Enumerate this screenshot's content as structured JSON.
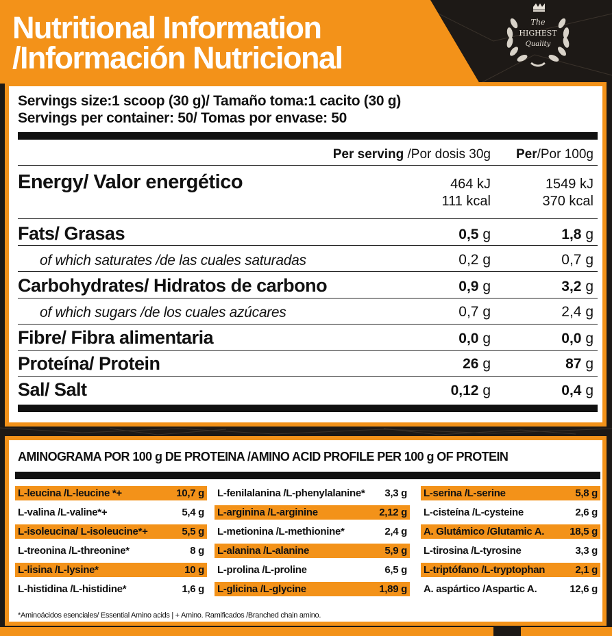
{
  "header": {
    "title_en": "Nutritional Information",
    "title_es": "/Información Nutricional",
    "badge": {
      "line1": "The",
      "line2": "HIGHEST",
      "line3": "Quality",
      "icon": "laurel-crown-icon"
    }
  },
  "servings": {
    "size": "Servings size:1 scoop (30 g)/ Tamaño toma:1 cacito (30 g)",
    "per_container": "Servings per container: 50/ Tomas por envase: 50"
  },
  "columns": {
    "per_serving_bold": "Per serving",
    "per_serving_rest": " /Por dosis 30g",
    "per_100_bold": "Per",
    "per_100_rest": "/Por 100g"
  },
  "energy": {
    "label": "Energy/ Valor energético",
    "serving_kj": "464 kJ",
    "serving_kcal": "111 kcal",
    "per100_kj": "1549 kJ",
    "per100_kcal": "370 kcal"
  },
  "nutrients": [
    {
      "label": "Fats/ Grasas",
      "serving_num": "0,5",
      "serving_unit": " g",
      "per100_num": "1,8",
      "per100_unit": " g"
    },
    {
      "label": "of which saturates /de las cuales saturadas",
      "serving_num": "0,2",
      "serving_unit": " g",
      "per100_num": "0,7",
      "per100_unit": " g"
    },
    {
      "label": "Carbohydrates/ Hidratos de carbono",
      "serving_num": "0,9",
      "serving_unit": " g",
      "per100_num": "3,2",
      "per100_unit": " g"
    },
    {
      "label": "of which sugars /de los cuales azúcares",
      "serving_num": "0,7",
      "serving_unit": " g",
      "per100_num": "2,4",
      "per100_unit": " g"
    },
    {
      "label": "Fibre/ Fibra alimentaria",
      "serving_num": "0,0",
      "serving_unit": " g",
      "per100_num": "0,0",
      "per100_unit": " g"
    },
    {
      "label": "Proteína/ Protein",
      "serving_num": "26",
      "serving_unit": " g",
      "per100_num": "87",
      "per100_unit": " g"
    },
    {
      "label": "Sal/ Salt",
      "serving_num": "0,12",
      "serving_unit": " g",
      "per100_num": "0,4",
      "per100_unit": " g"
    }
  ],
  "amino": {
    "title": "AMINOGRAMA POR 100 g DE PROTEINA /AMINO ACID PROFILE PER 100 g OF PROTEIN",
    "columns": [
      [
        {
          "name": "L-leucina /L-leucine *+",
          "value": "10,7 g",
          "hl": true
        },
        {
          "name": "L-valina /L-valine*+",
          "value": "5,4 g",
          "hl": false
        },
        {
          "name": "L-isoleucina/ L-isoleucine*+",
          "value": "5,5 g",
          "hl": true
        },
        {
          "name": "L-treonina /L-threonine*",
          "value": "8 g",
          "hl": false
        },
        {
          "name": "L-lisina /L-lysine*",
          "value": "10 g",
          "hl": true
        },
        {
          "name": "L-histidina /L-histidine*",
          "value": "1,6 g",
          "hl": false
        }
      ],
      [
        {
          "name": "L-fenilalanina /L-phenylalanine*",
          "value": "3,3 g",
          "hl": false
        },
        {
          "name": "L-arginina /L-arginine",
          "value": "2,12 g",
          "hl": true
        },
        {
          "name": "L-metionina /L-methionine*",
          "value": "2,4 g",
          "hl": false
        },
        {
          "name": "L-alanina /L-alanine",
          "value": "5,9 g",
          "hl": true
        },
        {
          "name": "L-prolina /L-proline",
          "value": "6,5 g",
          "hl": false
        },
        {
          "name": "L-glicina /L-glycine",
          "value": "1,89 g",
          "hl": true
        }
      ],
      [
        {
          "name": "L-serina /L-serine",
          "value": "5,8 g",
          "hl": true
        },
        {
          "name": "L-cisteína /L-cysteine",
          "value": "2,6 g",
          "hl": false
        },
        {
          "name": "A. Glutámico /Glutamic A.",
          "value": "18,5 g",
          "hl": true
        },
        {
          "name": "L-tirosina /L-tyrosine",
          "value": "3,3 g",
          "hl": false
        },
        {
          "name": "L-triptófano /L-tryptophan",
          "value": "2,1 g",
          "hl": true
        },
        {
          "name": "A. aspártico /Aspartic A.",
          "value": "12,6 g",
          "hl": false
        }
      ]
    ],
    "footnote": "*Aminoácidos esenciales/ Essential Amino acids  |  + Amino. Ramificados /Branched chain amino."
  },
  "colors": {
    "accent": "#f39219",
    "dark": "#1d1916",
    "text": "#111111"
  }
}
